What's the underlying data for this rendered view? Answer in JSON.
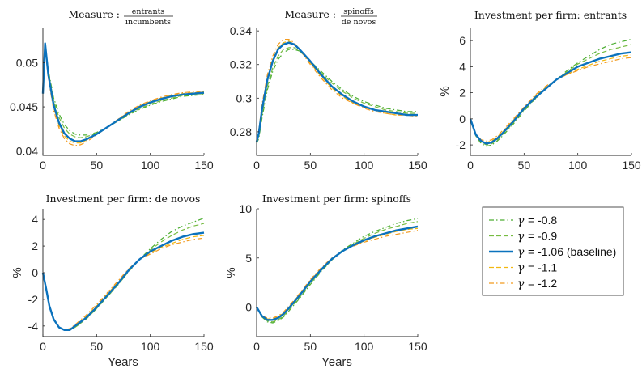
{
  "chart_data": [
    {
      "type": "line",
      "title": "Measure :",
      "title_fraction": {
        "numerator": "entrants",
        "denominator": "incumbents"
      },
      "xlabel": "",
      "ylabel": "",
      "xlim": [
        0,
        150
      ],
      "ylim": [
        0.0395,
        0.054
      ],
      "xticks": [
        "0",
        "50",
        "100",
        "150"
      ],
      "yticks": [
        "0.04",
        "0.045",
        "0.05"
      ],
      "ytick_values": [
        0.04,
        0.045,
        0.05
      ],
      "x": [
        0,
        2,
        5,
        10,
        15,
        20,
        25,
        30,
        35,
        40,
        50,
        60,
        70,
        80,
        90,
        100,
        110,
        120,
        130,
        140,
        150
      ],
      "series": [
        {
          "name": "γ = -0.8",
          "values": [
            0.0465,
            0.052,
            0.0492,
            0.046,
            0.0442,
            0.043,
            0.0423,
            0.0419,
            0.0418,
            0.0418,
            0.0421,
            0.0427,
            0.0434,
            0.0441,
            0.0447,
            0.0452,
            0.0456,
            0.0459,
            0.0462,
            0.0463,
            0.0464
          ]
        },
        {
          "name": "γ = -0.9",
          "values": [
            0.0465,
            0.0521,
            0.049,
            0.0457,
            0.0438,
            0.0426,
            0.0419,
            0.0416,
            0.0415,
            0.0416,
            0.042,
            0.0427,
            0.0434,
            0.0442,
            0.0448,
            0.0453,
            0.0457,
            0.046,
            0.0463,
            0.0464,
            0.0465
          ]
        },
        {
          "name": "γ = -1.06 (baseline)",
          "values": [
            0.0465,
            0.0522,
            0.0487,
            0.0452,
            0.0432,
            0.042,
            0.0414,
            0.0411,
            0.0411,
            0.0413,
            0.0419,
            0.0427,
            0.0435,
            0.0443,
            0.045,
            0.0455,
            0.0459,
            0.0462,
            0.0464,
            0.0465,
            0.0466
          ]
        },
        {
          "name": "γ = -1.1",
          "values": [
            0.0465,
            0.0522,
            0.0485,
            0.0449,
            0.0429,
            0.0417,
            0.0411,
            0.0409,
            0.0409,
            0.0412,
            0.0419,
            0.0427,
            0.0436,
            0.0444,
            0.0451,
            0.0456,
            0.046,
            0.0463,
            0.0465,
            0.0466,
            0.0467
          ]
        },
        {
          "name": "γ = -1.2",
          "values": [
            0.0465,
            0.0521,
            0.0483,
            0.0446,
            0.0426,
            0.0414,
            0.0408,
            0.0406,
            0.0407,
            0.041,
            0.0418,
            0.0427,
            0.0436,
            0.0445,
            0.0452,
            0.0457,
            0.0461,
            0.0464,
            0.0466,
            0.0467,
            0.0468
          ]
        }
      ]
    },
    {
      "type": "line",
      "title": "Measure :",
      "title_fraction": {
        "numerator": "spinoffs",
        "denominator": "de novos"
      },
      "xlabel": "",
      "ylabel": "",
      "xlim": [
        0,
        150
      ],
      "ylim": [
        0.266,
        0.342
      ],
      "xticks": [
        "0",
        "50",
        "100",
        "150"
      ],
      "yticks": [
        "0.28",
        "0.3",
        "0.32",
        "0.34"
      ],
      "ytick_values": [
        0.28,
        0.3,
        0.32,
        0.34
      ],
      "x": [
        0,
        2,
        5,
        10,
        15,
        20,
        25,
        30,
        35,
        40,
        50,
        60,
        70,
        80,
        90,
        100,
        110,
        120,
        130,
        140,
        150
      ],
      "series": [
        {
          "name": "γ = -0.8",
          "values": [
            0.273,
            0.276,
            0.288,
            0.305,
            0.316,
            0.323,
            0.327,
            0.329,
            0.329,
            0.328,
            0.322,
            0.316,
            0.31,
            0.305,
            0.301,
            0.298,
            0.296,
            0.294,
            0.293,
            0.292,
            0.292
          ]
        },
        {
          "name": "γ = -0.9",
          "values": [
            0.273,
            0.277,
            0.29,
            0.307,
            0.318,
            0.325,
            0.329,
            0.33,
            0.33,
            0.328,
            0.322,
            0.315,
            0.309,
            0.304,
            0.3,
            0.297,
            0.295,
            0.293,
            0.292,
            0.291,
            0.291
          ]
        },
        {
          "name": "γ = -1.06 (baseline)",
          "values": [
            0.274,
            0.279,
            0.293,
            0.311,
            0.322,
            0.329,
            0.332,
            0.333,
            0.332,
            0.329,
            0.322,
            0.314,
            0.307,
            0.302,
            0.298,
            0.295,
            0.293,
            0.292,
            0.291,
            0.29,
            0.29
          ]
        },
        {
          "name": "γ = -1.1",
          "values": [
            0.274,
            0.28,
            0.294,
            0.312,
            0.323,
            0.33,
            0.333,
            0.334,
            0.332,
            0.329,
            0.321,
            0.313,
            0.306,
            0.301,
            0.297,
            0.295,
            0.293,
            0.291,
            0.29,
            0.29,
            0.29
          ]
        },
        {
          "name": "γ = -1.2",
          "values": [
            0.274,
            0.281,
            0.296,
            0.314,
            0.325,
            0.332,
            0.335,
            0.335,
            0.333,
            0.329,
            0.32,
            0.312,
            0.305,
            0.3,
            0.297,
            0.294,
            0.292,
            0.291,
            0.29,
            0.29,
            0.289
          ]
        }
      ]
    },
    {
      "type": "line",
      "title": "Investment per firm: entrants",
      "xlabel": "",
      "ylabel": "%",
      "xlim": [
        0,
        150
      ],
      "ylim": [
        -2.8,
        7.0
      ],
      "xticks": [
        "0",
        "50",
        "100",
        "150"
      ],
      "yticks": [
        "-2",
        "0",
        "2",
        "4",
        "6"
      ],
      "ytick_values": [
        -2,
        0,
        2,
        4,
        6
      ],
      "x": [
        0,
        5,
        10,
        15,
        20,
        25,
        30,
        40,
        50,
        60,
        70,
        80,
        90,
        100,
        110,
        120,
        130,
        140,
        150
      ],
      "series": [
        {
          "name": "γ = -0.8",
          "values": [
            0,
            -1.3,
            -1.9,
            -2.1,
            -2.0,
            -1.7,
            -1.3,
            -0.4,
            0.6,
            1.5,
            2.3,
            3.0,
            3.7,
            4.3,
            4.8,
            5.3,
            5.7,
            5.9,
            6.1
          ]
        },
        {
          "name": "γ = -0.9",
          "values": [
            0,
            -1.3,
            -1.8,
            -2.0,
            -1.9,
            -1.6,
            -1.2,
            -0.3,
            0.7,
            1.5,
            2.3,
            3.0,
            3.6,
            4.2,
            4.6,
            5.0,
            5.3,
            5.5,
            5.7
          ]
        },
        {
          "name": "γ = -1.06 (baseline)",
          "values": [
            0,
            -1.2,
            -1.7,
            -1.9,
            -1.8,
            -1.5,
            -1.1,
            -0.2,
            0.8,
            1.6,
            2.3,
            3.0,
            3.5,
            4.0,
            4.3,
            4.6,
            4.8,
            5.0,
            5.1
          ]
        },
        {
          "name": "γ = -1.1",
          "values": [
            0,
            -1.2,
            -1.7,
            -1.8,
            -1.7,
            -1.4,
            -1.0,
            -0.1,
            0.8,
            1.7,
            2.4,
            3.0,
            3.4,
            3.8,
            4.1,
            4.4,
            4.6,
            4.8,
            4.9
          ]
        },
        {
          "name": "γ = -1.2",
          "values": [
            0,
            -1.2,
            -1.6,
            -1.7,
            -1.6,
            -1.3,
            -0.9,
            0.0,
            0.9,
            1.8,
            2.5,
            3.0,
            3.4,
            3.7,
            4.0,
            4.2,
            4.4,
            4.6,
            4.7
          ]
        }
      ]
    },
    {
      "type": "line",
      "title": "Investment per firm: de novos",
      "xlabel": "Years",
      "ylabel": "%",
      "xlim": [
        0,
        150
      ],
      "ylim": [
        -4.8,
        4.8
      ],
      "xticks": [
        "0",
        "50",
        "100",
        "150"
      ],
      "yticks": [
        "-4",
        "-2",
        "0",
        "2",
        "4"
      ],
      "ytick_values": [
        -4,
        -2,
        0,
        2,
        4
      ],
      "x": [
        0,
        3,
        6,
        10,
        15,
        20,
        25,
        30,
        40,
        50,
        60,
        70,
        80,
        90,
        100,
        110,
        120,
        130,
        140,
        150
      ],
      "series": [
        {
          "name": "γ = -0.8",
          "values": [
            0,
            -1.2,
            -2.5,
            -3.5,
            -4.1,
            -4.3,
            -4.3,
            -4.1,
            -3.5,
            -2.7,
            -1.8,
            -0.9,
            0.1,
            1.0,
            1.8,
            2.5,
            3.1,
            3.5,
            3.8,
            4.1
          ]
        },
        {
          "name": "γ = -0.9",
          "values": [
            0,
            -1.2,
            -2.5,
            -3.5,
            -4.1,
            -4.3,
            -4.3,
            -4.1,
            -3.5,
            -2.7,
            -1.8,
            -0.9,
            0.1,
            1.0,
            1.7,
            2.3,
            2.8,
            3.2,
            3.5,
            3.7
          ]
        },
        {
          "name": "γ = -1.06 (baseline)",
          "values": [
            0,
            -1.2,
            -2.5,
            -3.5,
            -4.1,
            -4.3,
            -4.3,
            -4.0,
            -3.4,
            -2.6,
            -1.7,
            -0.8,
            0.2,
            1.0,
            1.6,
            2.0,
            2.4,
            2.7,
            2.9,
            3.0
          ]
        },
        {
          "name": "γ = -1.1",
          "values": [
            0,
            -1.2,
            -2.5,
            -3.5,
            -4.1,
            -4.3,
            -4.2,
            -4.0,
            -3.3,
            -2.5,
            -1.6,
            -0.7,
            0.2,
            1.0,
            1.5,
            1.9,
            2.2,
            2.5,
            2.7,
            2.8
          ]
        },
        {
          "name": "γ = -1.2",
          "values": [
            0,
            -1.2,
            -2.5,
            -3.5,
            -4.1,
            -4.3,
            -4.2,
            -3.9,
            -3.2,
            -2.4,
            -1.5,
            -0.6,
            0.3,
            1.0,
            1.4,
            1.8,
            2.1,
            2.3,
            2.5,
            2.6
          ]
        }
      ]
    },
    {
      "type": "line",
      "title": "Investment per firm: spinoffs",
      "xlabel": "Years",
      "ylabel": "%",
      "xlim": [
        0,
        150
      ],
      "ylim": [
        -3.0,
        10.0
      ],
      "xticks": [
        "0",
        "50",
        "100",
        "150"
      ],
      "yticks": [
        "0",
        "5",
        "10"
      ],
      "ytick_values": [
        0,
        5,
        10
      ],
      "x": [
        0,
        5,
        10,
        15,
        20,
        25,
        30,
        40,
        50,
        60,
        70,
        80,
        90,
        100,
        110,
        120,
        130,
        140,
        150
      ],
      "series": [
        {
          "name": "γ = -0.8",
          "values": [
            0,
            -1.0,
            -1.5,
            -1.6,
            -1.4,
            -1.0,
            -0.4,
            0.9,
            2.3,
            3.6,
            4.8,
            5.8,
            6.5,
            7.2,
            7.7,
            8.1,
            8.5,
            8.8,
            9.0
          ]
        },
        {
          "name": "γ = -0.9",
          "values": [
            0,
            -1.0,
            -1.4,
            -1.5,
            -1.3,
            -0.9,
            -0.3,
            1.0,
            2.4,
            3.7,
            4.8,
            5.7,
            6.4,
            7.0,
            7.5,
            7.9,
            8.2,
            8.5,
            8.7
          ]
        },
        {
          "name": "γ = -1.06 (baseline)",
          "values": [
            0,
            -0.9,
            -1.3,
            -1.3,
            -1.1,
            -0.7,
            -0.1,
            1.2,
            2.6,
            3.8,
            4.9,
            5.7,
            6.3,
            6.8,
            7.2,
            7.5,
            7.8,
            8.0,
            8.2
          ]
        },
        {
          "name": "γ = -1.1",
          "values": [
            0,
            -0.9,
            -1.2,
            -1.2,
            -1.0,
            -0.6,
            0.0,
            1.3,
            2.7,
            3.9,
            4.9,
            5.7,
            6.3,
            6.7,
            7.1,
            7.4,
            7.7,
            7.9,
            8.0
          ]
        },
        {
          "name": "γ = -1.2",
          "values": [
            0,
            -0.9,
            -1.1,
            -1.1,
            -0.9,
            -0.5,
            0.1,
            1.4,
            2.8,
            4.0,
            5.0,
            5.7,
            6.2,
            6.6,
            6.9,
            7.2,
            7.4,
            7.6,
            7.8
          ]
        }
      ]
    }
  ],
  "legend": {
    "placement": "right",
    "entries": [
      {
        "symbol": "γ",
        "text": "= -0.8",
        "color": "#4cae32",
        "style": "dashdot"
      },
      {
        "symbol": "γ",
        "text": "= -0.9",
        "color": "#77bc42",
        "style": "dashed"
      },
      {
        "symbol": "γ",
        "text": "= -1.06 (baseline)",
        "color": "#0b72bd",
        "style": "solid"
      },
      {
        "symbol": "γ",
        "text": "= -1.1",
        "color": "#f2b810",
        "style": "dashed"
      },
      {
        "symbol": "γ",
        "text": "= -1.2",
        "color": "#f29a1e",
        "style": "dashdot"
      }
    ]
  }
}
